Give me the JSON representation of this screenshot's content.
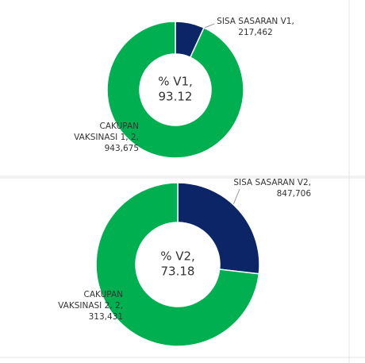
{
  "chart_data": [
    {
      "type": "pie",
      "center_label": "% V1,",
      "center_value": 93.12,
      "categories": [
        "SISA SASARAN V1,",
        "CAKUPAN VAKSINASI 1,"
      ],
      "values": [
        217462,
        2943675
      ],
      "value_labels": [
        "217,462",
        "2, 943,675"
      ],
      "colors": [
        "#0b2566",
        "#00b050"
      ]
    },
    {
      "type": "pie",
      "center_label": "% V2,",
      "center_value": 73.18,
      "categories": [
        "SISA SASARAN V2,",
        "CAKUPAN VAKSINASI 2,"
      ],
      "values": [
        847706,
        2313431
      ],
      "value_labels": [
        "847,706",
        "2, 313,431"
      ],
      "colors": [
        "#0b2566",
        "#00b050"
      ]
    }
  ]
}
